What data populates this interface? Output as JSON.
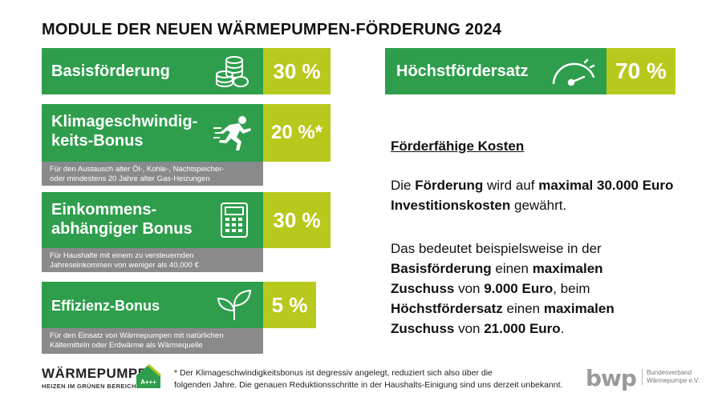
{
  "title": "MODULE DER NEUEN WÄRMEPUMPEN-FÖRDERUNG 2024",
  "colors": {
    "green": "#2e9e4c",
    "lime": "#b8c91d",
    "note_gray": "#8a8a8a"
  },
  "modules": [
    {
      "label_lines": [
        "Basisförderung"
      ],
      "value": "30 %",
      "icon": "coins-stack-icon"
    },
    {
      "label_lines": [
        "Klimageschwindig-",
        "keits-Bonus"
      ],
      "value": "20 %*",
      "icon": "running-person-icon",
      "note_lines": [
        "Für den Austausch alter Öl-, Kohle-, Nachtspeicher-",
        "oder mindestens 20 Jahre alter Gas-Heizungen"
      ]
    },
    {
      "label_lines": [
        "Einkommens-",
        "abhängiger Bonus"
      ],
      "value": "30 %",
      "icon": "calculator-icon",
      "note_lines": [
        "Für Haushalte mit einem zu versteuernden",
        "Jahreseinkommen von weniger als 40.000 €"
      ]
    },
    {
      "label_lines": [
        "Effizienz-Bonus"
      ],
      "value": "5 %",
      "icon": "sprout-icon",
      "note_lines": [
        "Für den Einsatz von Wärmepumpen mit natürlichen",
        "Kältemitteln oder Erdwärme als Wärmequelle"
      ]
    }
  ],
  "max_rate": {
    "label": "Höchstfördersatz",
    "value": "70 %",
    "icon": "gauge-icon"
  },
  "costs": {
    "heading": "Förderfähige Kosten",
    "p1": [
      {
        "t": "Die ",
        "b": false
      },
      {
        "t": "Förderung",
        "b": true
      },
      {
        "t": " wird auf ",
        "b": false
      },
      {
        "t": "maximal 30.000 Euro Investitionskosten",
        "b": true
      },
      {
        "t": " gewährt.",
        "b": false
      }
    ],
    "p2": [
      {
        "t": "Das bedeutet beispielsweise in der ",
        "b": false
      },
      {
        "t": "Basisförderung",
        "b": true
      },
      {
        "t": " einen ",
        "b": false
      },
      {
        "t": "maximalen Zuschuss",
        "b": true
      },
      {
        "t": " von ",
        "b": false
      },
      {
        "t": "9.000 Euro",
        "b": true
      },
      {
        "t": ", beim ",
        "b": false
      },
      {
        "t": "Höchstfördersatz",
        "b": true
      },
      {
        "t": " einen ",
        "b": false
      },
      {
        "t": "maximalen Zuschuss",
        "b": true
      },
      {
        "t": " von ",
        "b": false
      },
      {
        "t": "21.000 Euro",
        "b": true
      },
      {
        "t": ".",
        "b": false
      }
    ]
  },
  "footnote_lines": [
    "* Der Klimageschwindigkeitsbonus ist degressiv angelegt, reduziert sich also über die",
    "folgenden Jahre. Die genauen Reduktionsschritte in der Haushalts-Einigung sind uns derzeit unbekannt."
  ],
  "logo_left": {
    "name": "WÄRMEPUMPE",
    "tagline": "HEIZEN IM GRÜNEN BEREICH",
    "badge": "A+++"
  },
  "logo_right": {
    "name": "bwp",
    "sub_lines": [
      "Bundesverband",
      "Wärmepumpe e.V."
    ]
  }
}
